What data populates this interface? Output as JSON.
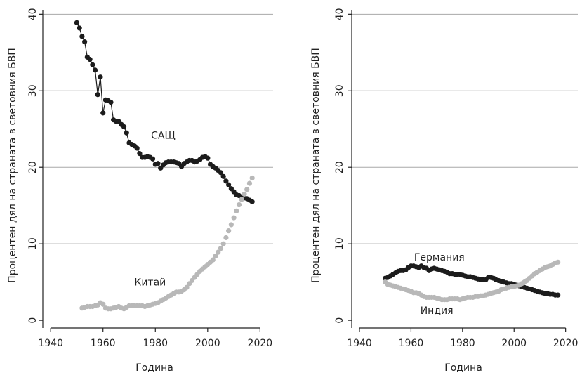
{
  "chart_data": [
    {
      "type": "line",
      "x_label": "Година",
      "y_label": "Процентен дял на страната в световния БВП",
      "xlim": [
        1937,
        2025
      ],
      "ylim": [
        -1,
        41.5
      ],
      "xticks": [
        1940,
        1960,
        1980,
        2000,
        2020
      ],
      "yticks": [
        0,
        10,
        20,
        30,
        40
      ],
      "grid": true,
      "x": [
        1950,
        1951,
        1952,
        1953,
        1954,
        1955,
        1956,
        1957,
        1958,
        1959,
        1960,
        1961,
        1962,
        1963,
        1964,
        1965,
        1966,
        1967,
        1968,
        1969,
        1970,
        1971,
        1972,
        1973,
        1974,
        1975,
        1976,
        1977,
        1978,
        1979,
        1980,
        1981,
        1982,
        1983,
        1984,
        1985,
        1986,
        1987,
        1988,
        1989,
        1990,
        1991,
        1992,
        1993,
        1994,
        1995,
        1996,
        1997,
        1998,
        1999,
        2000,
        2001,
        2002,
        2003,
        2004,
        2005,
        2006,
        2007,
        2008,
        2009,
        2010,
        2011,
        2012,
        2013,
        2014,
        2015,
        2016,
        2017
      ],
      "series": [
        {
          "name": "САЩ",
          "color": "#1c1c1c",
          "style": "line-markers",
          "values": [
            38.9,
            38.2,
            37.1,
            36.4,
            34.4,
            34.1,
            33.4,
            32.7,
            29.5,
            31.8,
            27.1,
            28.8,
            28.7,
            28.5,
            26.2,
            26.0,
            26.0,
            25.6,
            25.3,
            24.5,
            23.2,
            23.0,
            22.8,
            22.5,
            21.8,
            21.3,
            21.3,
            21.4,
            21.3,
            21.1,
            20.4,
            20.5,
            19.9,
            20.3,
            20.6,
            20.7,
            20.7,
            20.7,
            20.6,
            20.5,
            20.1,
            20.5,
            20.7,
            20.9,
            20.9,
            20.7,
            20.8,
            21.0,
            21.3,
            21.4,
            21.2,
            20.4,
            20.1,
            19.9,
            19.6,
            19.3,
            18.8,
            18.2,
            17.7,
            17.2,
            16.8,
            16.4,
            16.3,
            16.1,
            16.0,
            15.9,
            15.7,
            15.5
          ]
        },
        {
          "name": "Китай",
          "color": "#b8b8b8",
          "style": "markers",
          "values": [
            null,
            null,
            1.6,
            1.7,
            1.8,
            1.8,
            1.8,
            1.9,
            2.0,
            2.3,
            2.1,
            1.6,
            1.5,
            1.5,
            1.6,
            1.7,
            1.8,
            1.6,
            1.5,
            1.7,
            1.9,
            1.9,
            1.9,
            1.9,
            1.9,
            1.9,
            1.8,
            1.9,
            2.0,
            2.1,
            2.2,
            2.3,
            2.5,
            2.7,
            2.9,
            3.1,
            3.3,
            3.5,
            3.7,
            3.7,
            3.8,
            4.0,
            4.3,
            4.8,
            5.2,
            5.6,
            6.0,
            6.4,
            6.7,
            7.0,
            7.3,
            7.6,
            7.9,
            8.4,
            8.9,
            9.4,
            10.0,
            10.8,
            11.7,
            12.5,
            13.4,
            14.3,
            15.1,
            15.8,
            16.5,
            17.1,
            17.9,
            18.6
          ]
        }
      ],
      "annotations": [
        {
          "text": "САЩ",
          "x": 1983,
          "y": 24.1
        },
        {
          "text": "Китай",
          "x": 1978,
          "y": 4.9
        }
      ]
    },
    {
      "type": "line",
      "x_label": "Година",
      "y_label": "Процентен дял на страната в световния БВП",
      "xlim": [
        1937,
        2025
      ],
      "ylim": [
        -1,
        41.5
      ],
      "xticks": [
        1940,
        1960,
        1980,
        2000,
        2020
      ],
      "yticks": [
        0,
        10,
        20,
        30,
        40
      ],
      "grid": true,
      "x": [
        1950,
        1951,
        1952,
        1953,
        1954,
        1955,
        1956,
        1957,
        1958,
        1959,
        1960,
        1961,
        1962,
        1963,
        1964,
        1965,
        1966,
        1967,
        1968,
        1969,
        1970,
        1971,
        1972,
        1973,
        1974,
        1975,
        1976,
        1977,
        1978,
        1979,
        1980,
        1981,
        1982,
        1983,
        1984,
        1985,
        1986,
        1987,
        1988,
        1989,
        1990,
        1991,
        1992,
        1993,
        1994,
        1995,
        1996,
        1997,
        1998,
        1999,
        2000,
        2001,
        2002,
        2003,
        2004,
        2005,
        2006,
        2007,
        2008,
        2009,
        2010,
        2011,
        2012,
        2013,
        2014,
        2015,
        2016,
        2017
      ],
      "series": [
        {
          "name": "Германия",
          "color": "#1c1c1c",
          "style": "markers",
          "values": [
            5.5,
            5.6,
            5.8,
            6.0,
            6.2,
            6.4,
            6.5,
            6.5,
            6.6,
            6.9,
            7.1,
            7.1,
            7.0,
            6.9,
            7.1,
            6.9,
            6.8,
            6.5,
            6.7,
            6.8,
            6.7,
            6.6,
            6.5,
            6.4,
            6.3,
            6.1,
            6.1,
            6.0,
            6.0,
            6.0,
            5.9,
            5.8,
            5.7,
            5.7,
            5.6,
            5.5,
            5.4,
            5.3,
            5.3,
            5.3,
            5.6,
            5.6,
            5.5,
            5.3,
            5.2,
            5.1,
            5.0,
            4.9,
            4.8,
            4.8,
            4.7,
            4.6,
            4.5,
            4.4,
            4.3,
            4.2,
            4.1,
            4.0,
            3.9,
            3.8,
            3.7,
            3.6,
            3.5,
            3.5,
            3.4,
            3.4,
            3.3,
            3.3
          ]
        },
        {
          "name": "Индия",
          "color": "#b8b8b8",
          "style": "markers",
          "values": [
            5.0,
            4.7,
            4.6,
            4.5,
            4.4,
            4.3,
            4.2,
            4.1,
            4.0,
            3.9,
            3.8,
            3.6,
            3.6,
            3.5,
            3.3,
            3.1,
            3.0,
            3.0,
            3.0,
            3.0,
            2.9,
            2.8,
            2.7,
            2.7,
            2.7,
            2.8,
            2.8,
            2.8,
            2.8,
            2.7,
            2.8,
            2.9,
            3.0,
            3.0,
            3.0,
            3.1,
            3.1,
            3.2,
            3.2,
            3.3,
            3.4,
            3.5,
            3.6,
            3.7,
            3.8,
            4.0,
            4.1,
            4.2,
            4.3,
            4.4,
            4.4,
            4.5,
            4.6,
            4.8,
            5.0,
            5.2,
            5.5,
            5.8,
            6.1,
            6.3,
            6.5,
            6.7,
            6.9,
            7.0,
            7.1,
            7.3,
            7.5,
            7.6
          ]
        }
      ],
      "annotations": [
        {
          "text": "Германия",
          "x": 1971,
          "y": 8.2
        },
        {
          "text": "Индия",
          "x": 1970,
          "y": 1.2
        }
      ]
    }
  ]
}
